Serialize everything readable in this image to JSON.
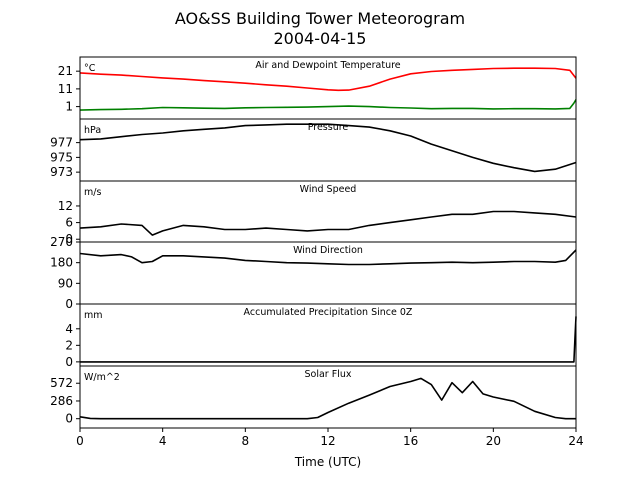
{
  "chart_data": {
    "type": "line",
    "title": "AO&SS Building Tower Meteorogram",
    "subtitle": "2004-04-15",
    "xlabel": "Time (UTC)",
    "xlim": [
      0,
      24
    ],
    "xticks": [
      0,
      4,
      8,
      12,
      16,
      20,
      24
    ],
    "panels": [
      {
        "title": "Air and Dewpoint Temperature",
        "unit": "°C",
        "ylim": [
          -6,
          29
        ],
        "yticks": [
          1,
          11,
          21
        ],
        "series": [
          {
            "color": "#ff0000",
            "x": [
              0,
              1,
              2,
              3,
              4,
              5,
              6,
              7,
              8,
              9,
              10,
              11,
              12,
              12.5,
              13,
              14,
              15,
              16,
              17,
              18,
              19,
              20,
              21,
              22,
              23,
              23.7,
              24
            ],
            "y": [
              20,
              19.3,
              18.8,
              18,
              17.2,
              16.5,
              15.7,
              15,
              14.2,
              13.3,
              12.5,
              11.5,
              10.5,
              10.2,
              10.3,
              12.5,
              16.5,
              19.5,
              20.8,
              21.5,
              22,
              22.5,
              22.7,
              22.7,
              22.5,
              21.5,
              17
            ]
          },
          {
            "color": "#008000",
            "x": [
              0,
              1,
              2,
              3,
              4,
              5,
              6,
              7,
              8,
              9,
              10,
              11,
              12,
              13,
              14,
              15,
              16,
              17,
              18,
              19,
              20,
              21,
              22,
              23,
              23.7,
              23.9,
              24
            ],
            "y": [
              -1,
              -0.7,
              -0.5,
              -0.2,
              0.5,
              0.3,
              0.1,
              0,
              0.3,
              0.5,
              0.6,
              0.7,
              1,
              1.3,
              1,
              0.5,
              0.2,
              -0.2,
              0,
              0,
              -0.3,
              -0.2,
              -0.2,
              -0.3,
              0,
              3,
              5
            ]
          }
        ]
      },
      {
        "title": "Pressure",
        "unit": "hPa",
        "ylim": [
          971.8,
          980.2
        ],
        "yticks": [
          973,
          975,
          977
        ],
        "series": [
          {
            "color": "#000000",
            "x": [
              0,
              1,
              2,
              3,
              4,
              5,
              6,
              7,
              8,
              9,
              10,
              11,
              12,
              13,
              14,
              15,
              16,
              17,
              18,
              19,
              20,
              21,
              22,
              23,
              24
            ],
            "y": [
              977.4,
              977.5,
              977.8,
              978.1,
              978.3,
              978.6,
              978.8,
              979,
              979.3,
              979.4,
              979.5,
              979.5,
              979.5,
              979.3,
              979.1,
              978.6,
              977.9,
              976.8,
              975.9,
              975,
              974.2,
              973.6,
              973.1,
              973.4,
              974.3
            ]
          }
        ]
      },
      {
        "title": "Wind Speed",
        "unit": "m/s",
        "ylim": [
          -1,
          21
        ],
        "yticks": [
          0,
          6,
          12
        ],
        "series": [
          {
            "color": "#000000",
            "x": [
              0,
              1,
              2,
              3,
              3.5,
              4,
              5,
              6,
              7,
              8,
              9,
              10,
              11,
              12,
              13,
              14,
              15,
              16,
              17,
              18,
              19,
              20,
              21,
              22,
              23,
              24
            ],
            "y": [
              4,
              4.5,
              5.5,
              5,
              1.5,
              3,
              5,
              4.5,
              3.5,
              3.5,
              4,
              3.5,
              3,
              3.5,
              3.5,
              5,
              6,
              7,
              8,
              9,
              9,
              10,
              10,
              9.5,
              9,
              8
            ]
          }
        ]
      },
      {
        "title": "Wind Direction",
        "unit": "",
        "ylim": [
          0,
          270
        ],
        "yticks": [
          0,
          90,
          180,
          270
        ],
        "series": [
          {
            "color": "#000000",
            "x": [
              0,
              1,
              2,
              2.5,
              3,
              3.5,
              4,
              5,
              6,
              7,
              8,
              9,
              10,
              11,
              12,
              13,
              14,
              15,
              16,
              17,
              18,
              19,
              20,
              21,
              22,
              23,
              23.5,
              24
            ],
            "y": [
              220,
              210,
              215,
              205,
              180,
              185,
              210,
              210,
              205,
              200,
              190,
              185,
              180,
              178,
              175,
              172,
              172,
              175,
              178,
              180,
              182,
              180,
              182,
              185,
              185,
              182,
              190,
              235
            ]
          }
        ]
      },
      {
        "title": "Accumulated Precipitation Since 0Z",
        "unit": "mm",
        "ylim": [
          -0.5,
          7
        ],
        "yticks": [
          0,
          2,
          4
        ],
        "series": [
          {
            "color": "#000000",
            "x": [
              0,
              4,
              8,
              12,
              16,
              20,
              23.9,
              23.95,
              24
            ],
            "y": [
              0,
              0,
              0,
              0,
              0,
              0,
              0,
              3,
              5.5
            ]
          }
        ]
      },
      {
        "title": "Solar Flux",
        "unit": "W/m^2",
        "ylim": [
          -150,
          850
        ],
        "yticks": [
          0,
          286,
          572
        ],
        "series": [
          {
            "color": "#000000",
            "x": [
              0,
              0.5,
              1,
              4,
              8,
              11,
              11.5,
              12,
              13,
              14,
              15,
              16,
              16.5,
              17,
              17.5,
              18,
              18.5,
              19,
              19.5,
              20,
              21,
              22,
              23,
              23.5,
              24
            ],
            "y": [
              30,
              5,
              0,
              0,
              0,
              0,
              20,
              100,
              250,
              380,
              520,
              600,
              650,
              550,
              300,
              580,
              420,
              600,
              400,
              350,
              280,
              120,
              20,
              0,
              0
            ]
          }
        ]
      }
    ]
  }
}
